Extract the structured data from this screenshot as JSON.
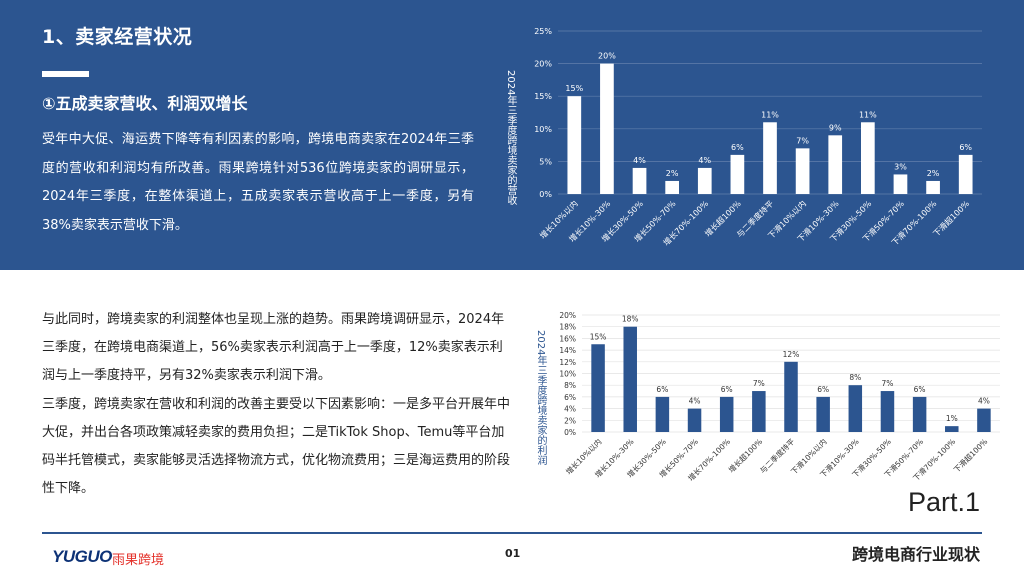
{
  "section": {
    "title": "1、卖家经营状况",
    "subtitle": "①五成卖家营收、利润双增长",
    "paragraph1": "受年中大促、海运费下降等有利因素的影响，跨境电商卖家在2024年三季度的营收和利润均有所改善。雨果跨境针对536位跨境卖家的调研显示，2024年三季度，在整体渠道上，五成卖家表示营收高于上一季度，另有38%卖家表示营收下滑。",
    "paragraph2": [
      "与此同时，跨境卖家的利润整体也呈现上涨的趋势。雨果跨境调研显示，2024年三季度，在跨境电商渠道上，56%卖家表示利润高于上一季度，12%卖家表示利润与上一季度持平，另有32%卖家表示利润下滑。",
      "三季度，跨境卖家在营收和利润的改善主要受以下因素影响：一是多平台开展年中大促，并出台各项政策减轻卖家的费用负担；二是TikTok Shop、Temu等平台加码半托管模式，卖家能够灵活选择物流方式，优化物流费用；三是海运费用的阶段性下降。"
    ]
  },
  "chart_data": [
    {
      "type": "bar",
      "ylabel": "2024年三季度跨境卖家的营收",
      "categories": [
        "增长10%以内",
        "增长10%-30%",
        "增长30%-50%",
        "增长50%-70%",
        "增长70%-100%",
        "增长超100%",
        "与二季度持平",
        "下滑10%以内",
        "下滑10%-30%",
        "下滑30%-50%",
        "下滑50%-70%",
        "下滑70%-100%",
        "下滑超100%"
      ],
      "values": [
        15,
        20,
        4,
        2,
        4,
        6,
        11,
        7,
        9,
        11,
        3,
        2,
        6
      ],
      "value_labels": [
        "15%",
        "20%",
        "4%",
        "2%",
        "4%",
        "6%",
        "11%",
        "7%",
        "9%",
        "11%",
        "3%",
        "2%",
        "6%"
      ],
      "yticks": [
        "0%",
        "5%",
        "10%",
        "15%",
        "20%",
        "25%"
      ],
      "ylim": [
        0,
        25
      ],
      "bar_color": "#ffffff",
      "grid": true
    },
    {
      "type": "bar",
      "ylabel": "2024年三季度跨境卖家的利润",
      "categories": [
        "增长10%以内",
        "增长10%-30%",
        "增长30%-50%",
        "增长50%-70%",
        "增长70%-100%",
        "增长超100%",
        "与二季度持平",
        "下滑10%以内",
        "下滑10%-30%",
        "下滑30%-50%",
        "下滑50%-70%",
        "下滑70%-100%",
        "下滑超100%"
      ],
      "values": [
        15,
        18,
        6,
        4,
        6,
        7,
        12,
        6,
        8,
        7,
        6,
        1,
        4
      ],
      "value_labels": [
        "15%",
        "18%",
        "6%",
        "4%",
        "6%",
        "7%",
        "12%",
        "6%",
        "8%",
        "7%",
        "6%",
        "1%",
        "4%"
      ],
      "yticks": [
        "0%",
        "2%",
        "4%",
        "6%",
        "8%",
        "10%",
        "12%",
        "14%",
        "16%",
        "18%",
        "20%"
      ],
      "ylim": [
        0,
        20
      ],
      "bar_color": "#2c5590",
      "grid": true
    }
  ],
  "footer": {
    "part_label": "Part.1",
    "logo_text": "YUGUO",
    "logo_cn": "雨果跨境",
    "page_number": "01",
    "title": "跨境电商行业现状"
  }
}
